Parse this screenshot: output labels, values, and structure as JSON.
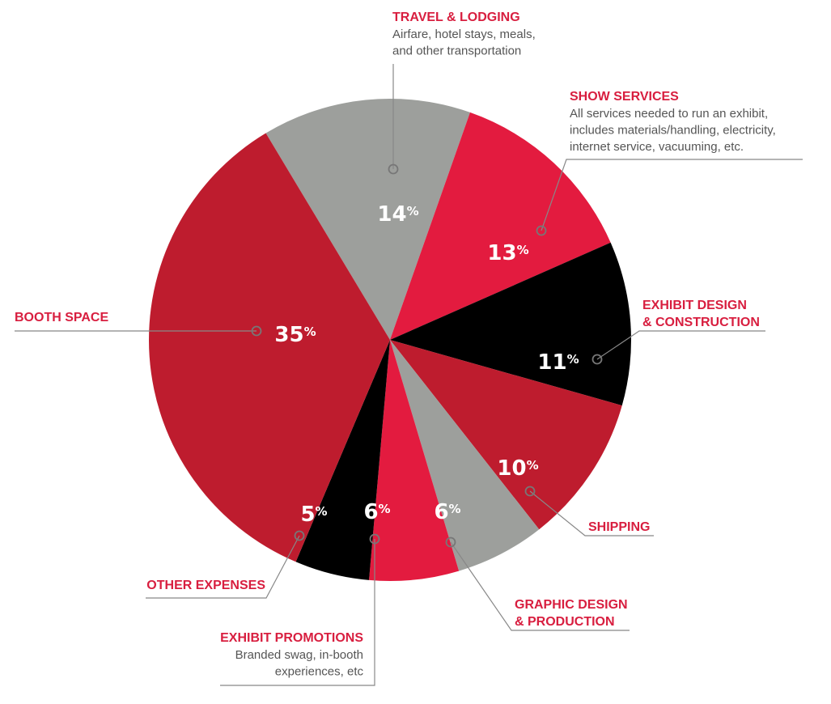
{
  "chart_data": {
    "type": "pie",
    "unit": "%",
    "slices": [
      {
        "name": "TRAVEL & LODGING",
        "value": 14,
        "color": "#9d9f9c",
        "description": [
          "Airfare, hotel stays, meals,",
          "and other transportation"
        ]
      },
      {
        "name": "SHOW SERVICES",
        "value": 13,
        "color": "#e31b3f",
        "description": [
          "All services needed to run an exhibit,",
          "includes materials/handling, electricity,",
          "internet service, vacuuming, etc."
        ]
      },
      {
        "name": "EXHIBIT DESIGN & CONSTRUCTION",
        "value": 11,
        "color": "#000000",
        "description": []
      },
      {
        "name": "SHIPPING",
        "value": 10,
        "color": "#be1c2e",
        "description": []
      },
      {
        "name": "GRAPHIC DESIGN & PRODUCTION",
        "value": 6,
        "color": "#9d9f9c",
        "description": []
      },
      {
        "name": "EXHIBIT PROMOTIONS",
        "value": 6,
        "color": "#e31b3f",
        "description": [
          "Branded swag, in-booth",
          "experiences, etc"
        ]
      },
      {
        "name": "OTHER EXPENSES",
        "value": 5,
        "color": "#000000",
        "description": []
      },
      {
        "name": "BOOTH SPACE",
        "value": 35,
        "color": "#be1c2e",
        "description": []
      }
    ],
    "label_lines": {
      "TRAVEL & LODGING": [
        "TRAVEL & LODGING"
      ],
      "SHOW SERVICES": [
        "SHOW SERVICES"
      ],
      "EXHIBIT DESIGN & CONSTRUCTION": [
        "EXHIBIT DESIGN",
        "& CONSTRUCTION"
      ],
      "SHIPPING": [
        "SHIPPING"
      ],
      "GRAPHIC DESIGN & PRODUCTION": [
        "GRAPHIC DESIGN",
        "& PRODUCTION"
      ],
      "EXHIBIT PROMOTIONS": [
        "EXHIBIT PROMOTIONS"
      ],
      "OTHER EXPENSES": [
        "OTHER EXPENSES"
      ],
      "BOOTH SPACE": [
        "BOOTH SPACE"
      ]
    },
    "title": "",
    "legend": "none"
  }
}
